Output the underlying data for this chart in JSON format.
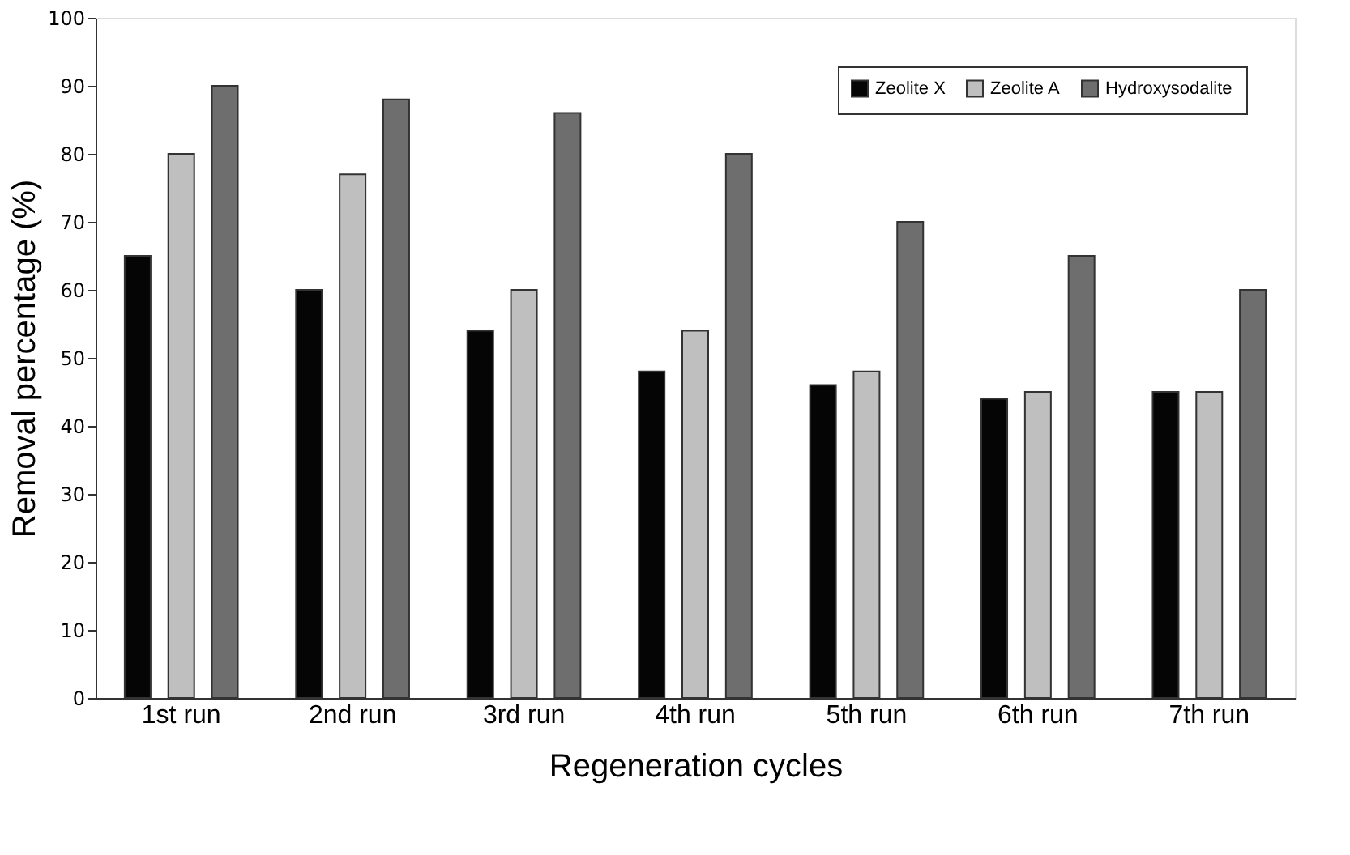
{
  "chart_data": {
    "type": "bar",
    "xlabel": "Regeneration cycles",
    "ylabel": "Removal percentage (%)",
    "categories": [
      "1st run",
      "2nd run",
      "3rd run",
      "4th run",
      "5th run",
      "6th run",
      "7th run"
    ],
    "series": [
      {
        "name": "Zeolite X",
        "color": "#050505",
        "values": [
          65,
          60,
          54,
          48,
          46,
          44,
          45
        ]
      },
      {
        "name": "Zeolite A",
        "color": "#bfbfbf",
        "values": [
          80,
          77,
          60,
          54,
          48,
          45,
          45
        ]
      },
      {
        "name": "Hydroxysodalite",
        "color": "#6e6e6e",
        "values": [
          90,
          88,
          86,
          80,
          70,
          65,
          60
        ]
      }
    ],
    "ylim": [
      0,
      100
    ],
    "yticks": [
      0,
      10,
      20,
      30,
      40,
      50,
      60,
      70,
      80,
      90,
      100
    ],
    "grid": false,
    "legend": "top right"
  }
}
